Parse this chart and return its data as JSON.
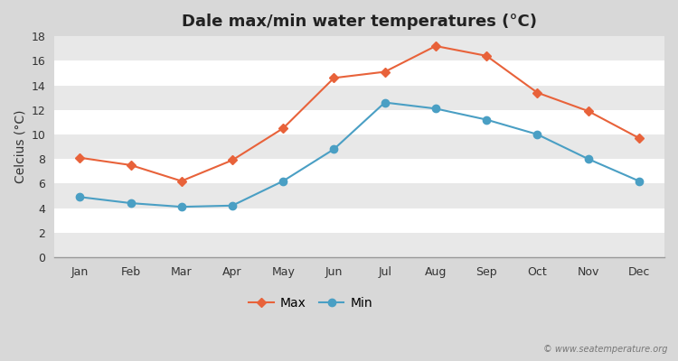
{
  "title": "Dale max/min water temperatures (°C)",
  "months": [
    "Jan",
    "Feb",
    "Mar",
    "Apr",
    "May",
    "Jun",
    "Jul",
    "Aug",
    "Sep",
    "Oct",
    "Nov",
    "Dec"
  ],
  "max_temps": [
    8.1,
    7.5,
    6.2,
    7.9,
    10.5,
    14.6,
    15.1,
    17.2,
    16.4,
    13.4,
    11.9,
    9.7
  ],
  "min_temps": [
    4.9,
    4.4,
    4.1,
    4.2,
    6.2,
    8.8,
    12.6,
    12.1,
    11.2,
    10.0,
    8.0,
    6.2
  ],
  "max_color": "#e8623a",
  "min_color": "#4a9fc4",
  "fig_bg_color": "#d8d8d8",
  "plot_bg_color": "#ffffff",
  "band_color_light": "#e8e8e8",
  "band_color_dark": "#d8d8d8",
  "ylim": [
    0,
    18
  ],
  "yticks": [
    0,
    2,
    4,
    6,
    8,
    10,
    12,
    14,
    16,
    18
  ],
  "ylabel": "Celcius (°C)",
  "legend_max": "Max",
  "legend_min": "Min",
  "watermark": "© www.seatemperature.org",
  "title_fontsize": 13,
  "label_fontsize": 10,
  "tick_fontsize": 9
}
